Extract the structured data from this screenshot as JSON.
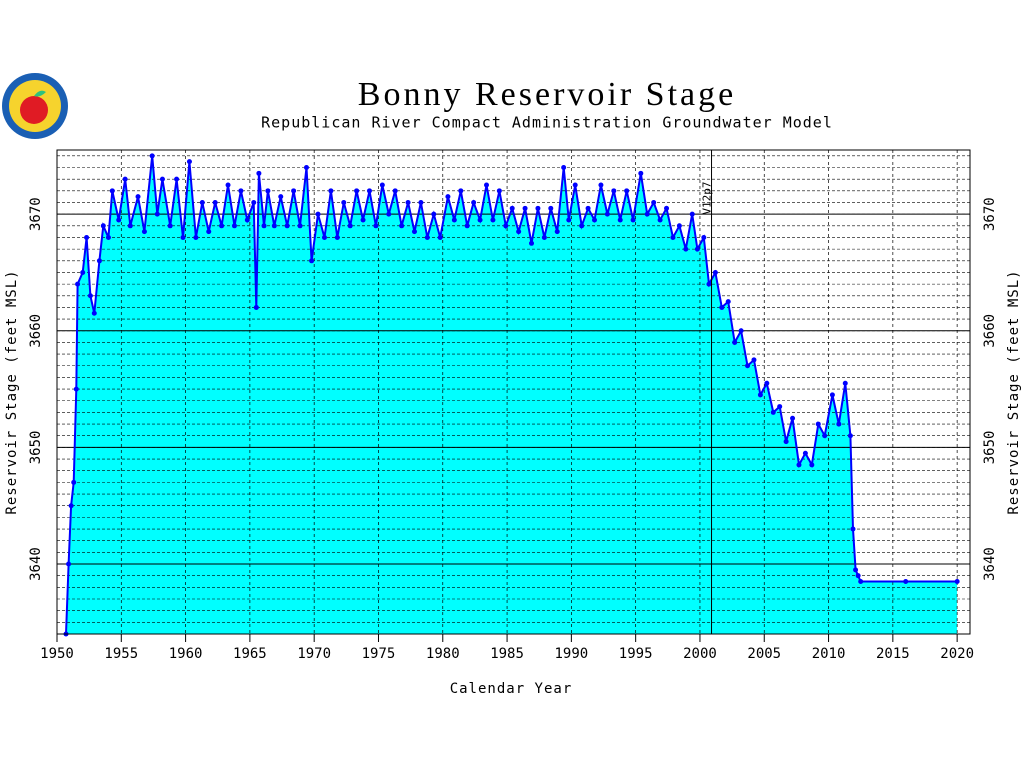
{
  "chart_data": {
    "type": "line",
    "title": "Bonny Reservoir Stage",
    "subtitle": "Republican River Compact Administration Groundwater Model",
    "xlabel": "Calendar Year",
    "ylabel": "Reservoir Stage (feet MSL)",
    "annotation": {
      "text": "V12p7",
      "x": 2000.9
    },
    "color": "#0000ff",
    "fill": "#00ffff",
    "grid": true,
    "minor_grid_step": 1,
    "xlim": [
      1950,
      2021
    ],
    "xticks": [
      1950,
      1955,
      1960,
      1965,
      1970,
      1975,
      1980,
      1985,
      1990,
      1995,
      2000,
      2005,
      2010,
      2015,
      2020
    ],
    "ylim": [
      3634,
      3675.5
    ],
    "yticks": [
      3640,
      3650,
      3660,
      3670
    ],
    "x": [
      1950.7,
      1950.9,
      1951.1,
      1951.3,
      1951.5,
      1951.6,
      1952.0,
      1952.3,
      1952.6,
      1952.9,
      1953.3,
      1953.6,
      1954.0,
      1954.3,
      1954.8,
      1955.3,
      1955.7,
      1956.3,
      1956.8,
      1957.4,
      1957.8,
      1958.2,
      1958.8,
      1959.3,
      1959.8,
      1960.3,
      1960.8,
      1961.3,
      1961.8,
      1962.3,
      1962.8,
      1963.3,
      1963.8,
      1964.3,
      1964.8,
      1965.3,
      1965.5,
      1965.7,
      1966.1,
      1966.4,
      1966.9,
      1967.4,
      1967.9,
      1968.4,
      1968.9,
      1969.4,
      1969.8,
      1970.3,
      1970.8,
      1971.3,
      1971.8,
      1972.3,
      1972.8,
      1973.3,
      1973.8,
      1974.3,
      1974.8,
      1975.3,
      1975.8,
      1976.3,
      1976.8,
      1977.3,
      1977.8,
      1978.3,
      1978.8,
      1979.3,
      1979.8,
      1980.4,
      1980.9,
      1981.4,
      1981.9,
      1982.4,
      1982.9,
      1983.4,
      1983.9,
      1984.4,
      1984.9,
      1985.4,
      1985.9,
      1986.4,
      1986.9,
      1987.4,
      1987.9,
      1988.4,
      1988.9,
      1989.4,
      1989.8,
      1990.3,
      1990.8,
      1991.3,
      1991.8,
      1992.3,
      1992.8,
      1993.3,
      1993.8,
      1994.3,
      1994.8,
      1995.4,
      1995.9,
      1996.4,
      1996.9,
      1997.4,
      1997.9,
      1998.4,
      1998.9,
      1999.4,
      1999.8,
      2000.3,
      2000.7,
      2001.2,
      2001.7,
      2002.2,
      2002.7,
      2003.2,
      2003.7,
      2004.2,
      2004.7,
      2005.2,
      2005.7,
      2006.2,
      2006.7,
      2007.2,
      2007.7,
      2008.2,
      2008.7,
      2009.2,
      2009.7,
      2010.3,
      2010.8,
      2011.3,
      2011.7,
      2011.9,
      2012.1,
      2012.3,
      2012.5,
      2016,
      2020
    ],
    "values": [
      3634,
      3640,
      3645,
      3647,
      3655,
      3664,
      3665,
      3668,
      3663,
      3661.5,
      3666,
      3669,
      3668,
      3672,
      3669.5,
      3673,
      3669,
      3671.5,
      3668.5,
      3675,
      3670,
      3673,
      3669,
      3673,
      3668,
      3674.5,
      3668,
      3671,
      3668.5,
      3671,
      3669,
      3672.5,
      3669,
      3672,
      3669.5,
      3671,
      3662,
      3673.5,
      3669,
      3672,
      3669,
      3671.5,
      3669,
      3672,
      3669,
      3674,
      3666,
      3670,
      3668,
      3672,
      3668,
      3671,
      3669,
      3672,
      3669.5,
      3672,
      3669,
      3672.5,
      3670,
      3672,
      3669,
      3671,
      3668.5,
      3671,
      3668,
      3670,
      3668,
      3671.5,
      3669.5,
      3672,
      3669,
      3671,
      3669.5,
      3672.5,
      3669.5,
      3672,
      3669,
      3670.5,
      3668.5,
      3670.5,
      3667.5,
      3670.5,
      3668,
      3670.5,
      3668.5,
      3674,
      3669.5,
      3672.5,
      3669,
      3670.5,
      3669.5,
      3672.5,
      3670,
      3672,
      3669.5,
      3672,
      3669.5,
      3673.5,
      3670,
      3671,
      3669.5,
      3670.5,
      3668,
      3669,
      3667,
      3670,
      3667,
      3668,
      3664,
      3665,
      3662,
      3662.5,
      3659,
      3660,
      3657,
      3657.5,
      3654.5,
      3655.5,
      3653,
      3653.5,
      3650.5,
      3652.5,
      3648.5,
      3649.5,
      3648.5,
      3652,
      3651,
      3654.5,
      3652,
      3655.5,
      3651,
      3643,
      3639.5,
      3639,
      3638.5,
      3638.5,
      3638.5
    ]
  }
}
